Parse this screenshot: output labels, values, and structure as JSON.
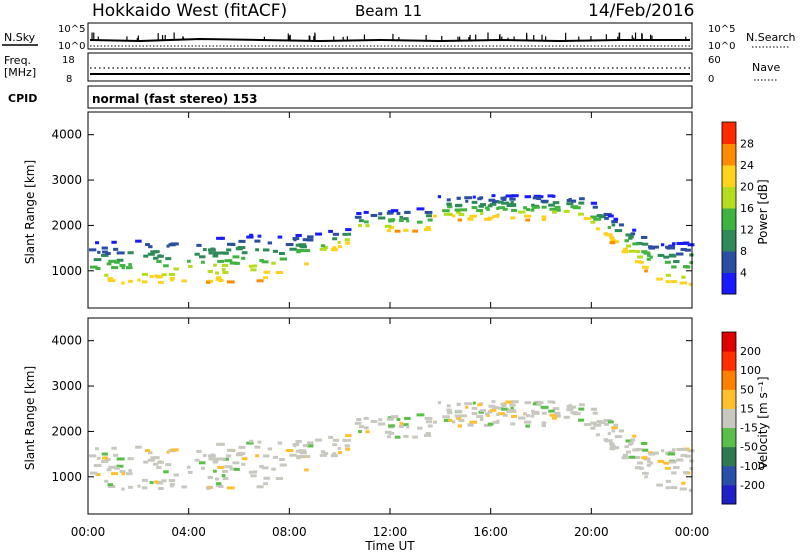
{
  "header": {
    "title": "Hokkaido West (fitACF)",
    "beam": "Beam 11",
    "date": "14/Feb/2016"
  },
  "summary": {
    "nsky_label": "N.Sky",
    "nsearch_label": "N.Search",
    "noise_ticks": [
      "10^5",
      "10^0"
    ],
    "freq_label": "Freq.",
    "freq_unit": "[MHz]",
    "freq_ticks": [
      "18",
      "8"
    ],
    "nave_label": "Nave",
    "nave_ticks": [
      "60",
      "0"
    ],
    "cpid_label": "CPID",
    "cpid_value": "normal (fast stereo) 153"
  },
  "chart_data": [
    {
      "type": "heatmap",
      "panel": "power",
      "ylabel": "Slant Range [km]",
      "xlabel": "",
      "xlim": [
        "00:00",
        "24:00"
      ],
      "ylim": [
        180,
        4500
      ],
      "y_ticks": [
        "1000",
        "2000",
        "3000",
        "4000"
      ],
      "colorbar_label": "Power [dB]",
      "colorbar_ticks": [
        "4",
        "8",
        "12",
        "16",
        "20",
        "24",
        "28"
      ],
      "colorbar_colors": [
        "#1a1aff",
        "#2a4fa0",
        "#2e8a58",
        "#3fb33f",
        "#b6dc1e",
        "#ffd21e",
        "#ff8c00",
        "#ff2a00"
      ]
    },
    {
      "type": "heatmap",
      "panel": "velocity",
      "ylabel": "Slant Range [km]",
      "xlabel": "Time UT",
      "xlim": [
        "00:00",
        "24:00"
      ],
      "ylim": [
        180,
        4500
      ],
      "y_ticks": [
        "1000",
        "2000",
        "3000",
        "4000"
      ],
      "x_ticks": [
        "00:00",
        "04:00",
        "08:00",
        "12:00",
        "16:00",
        "20:00",
        "00:00"
      ],
      "colorbar_label": "Velocity [m s⁻¹]",
      "colorbar_ticks": [
        "200",
        "100",
        "50",
        "15",
        "-15",
        "-50",
        "-100",
        "-200"
      ],
      "colorbar_colors": [
        "#2020c8",
        "#2850a8",
        "#2e7a50",
        "#58c048",
        "#c8c8c0",
        "#ffc030",
        "#ff8000",
        "#ff3000",
        "#e00000"
      ]
    }
  ]
}
